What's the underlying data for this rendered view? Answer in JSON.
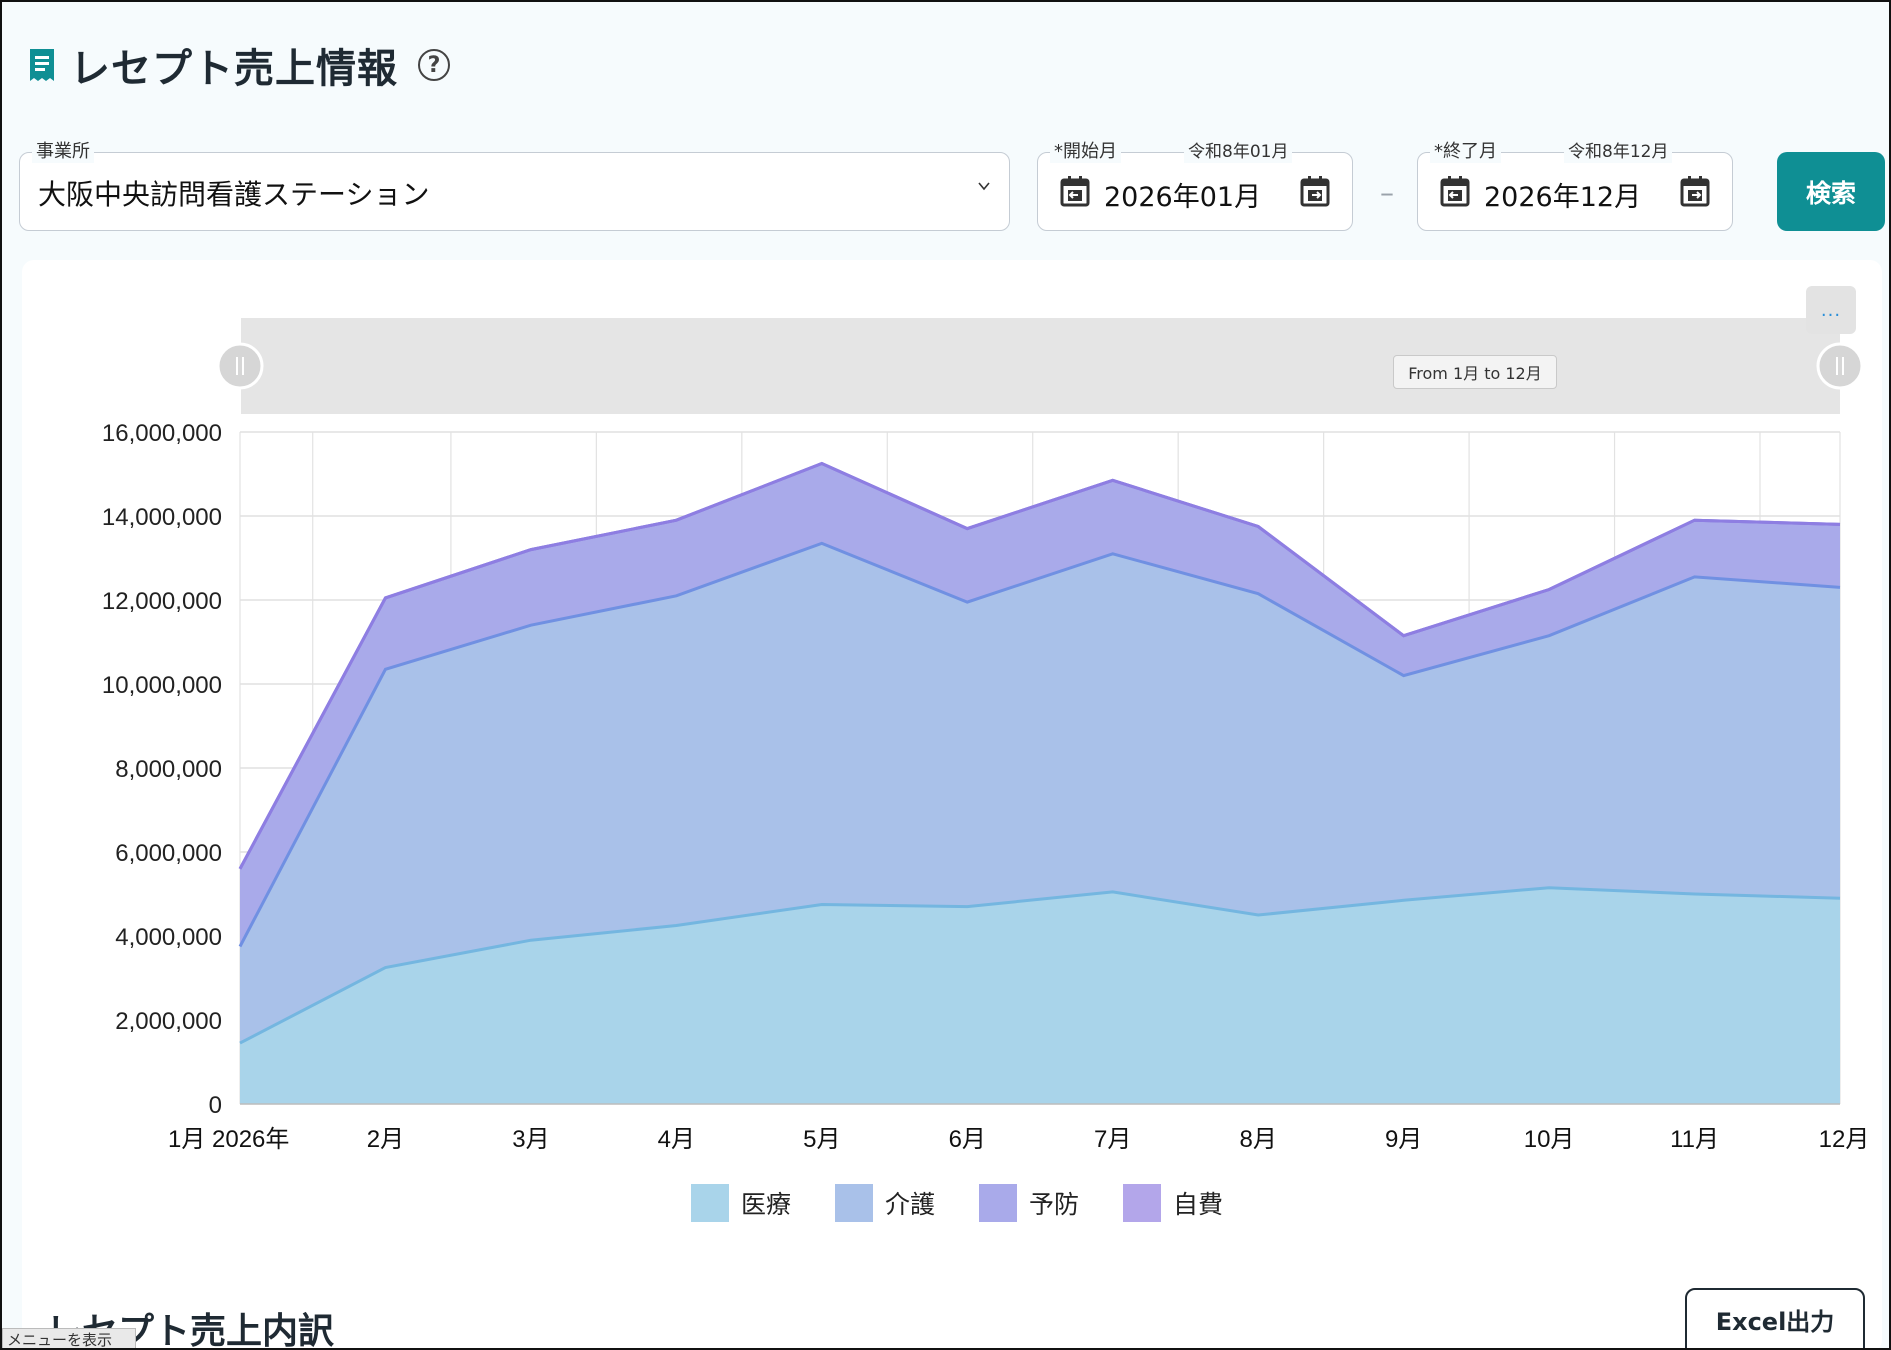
{
  "page": {
    "title": "レセプト売上情報",
    "help_icon": "question-circle-icon"
  },
  "filters": {
    "office_label": "事業所",
    "office_value": "大阪中央訪問看護ステーション",
    "start_label": "*開始月",
    "start_era": "令和8年01月",
    "start_value": "2026年01月",
    "end_label": "*終了月",
    "end_era": "令和8年12月",
    "end_value": "2026年12月",
    "separator": "–",
    "search_label": "検索"
  },
  "chart_menu": "...",
  "range_tooltip": "From 1月 to 12月",
  "chart_data": {
    "type": "area",
    "stacked": true,
    "categories": [
      "1月 2026年",
      "2月",
      "3月",
      "4月",
      "5月",
      "6月",
      "7月",
      "8月",
      "9月",
      "10月",
      "11月",
      "12月"
    ],
    "ylim": [
      0,
      16000000
    ],
    "yticks": [
      "0",
      "2,000,000",
      "4,000,000",
      "6,000,000",
      "8,000,000",
      "10,000,000",
      "12,000,000",
      "14,000,000",
      "16,000,000"
    ],
    "grid": true,
    "legend_position": "bottom",
    "series": [
      {
        "name": "医療",
        "color": "#a9d4ea",
        "line": "#74b6e0",
        "values": [
          1450000,
          3250000,
          3900000,
          4250000,
          4750000,
          4700000,
          5050000,
          4500000,
          4850000,
          5150000,
          5000000,
          4900000
        ]
      },
      {
        "name": "介護",
        "color": "#a9c1e9",
        "line": "#7090e2",
        "values": [
          2300000,
          7100000,
          7500000,
          7850000,
          8600000,
          7250000,
          8050000,
          7650000,
          5350000,
          6000000,
          7550000,
          7400000
        ]
      },
      {
        "name": "予防",
        "color": "#a9aaea",
        "line": "#7f73d9",
        "values": [
          1850000,
          1700000,
          1800000,
          1800000,
          1900000,
          1750000,
          1750000,
          1600000,
          950000,
          1100000,
          1350000,
          1500000
        ]
      },
      {
        "name": "自費",
        "color": "#b3a6ea",
        "line": "#8e7ee2",
        "values": [
          0,
          0,
          0,
          0,
          0,
          0,
          0,
          0,
          0,
          0,
          0,
          0
        ]
      }
    ]
  },
  "section": {
    "title": "レセプト売上内訳",
    "excel_label": "Excel出力"
  },
  "menu_toggle": "メニューを表示"
}
